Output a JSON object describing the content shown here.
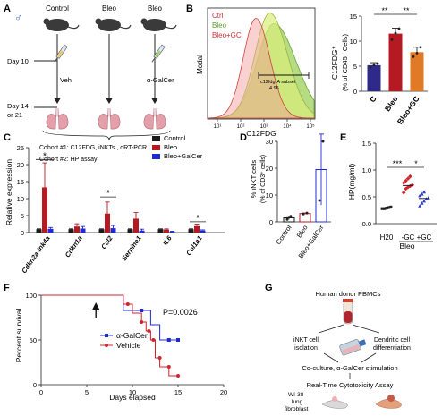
{
  "panel_labels": [
    "A",
    "B",
    "C",
    "D",
    "E",
    "F",
    "G"
  ],
  "panelA": {
    "groups": [
      "Control",
      "Bleo",
      "Bleo"
    ],
    "day10": "Day 10",
    "treatments": [
      "Veh",
      "α-GalCer"
    ],
    "day14": "Day 14",
    "or21": "or 21",
    "cohort1": "Cohort #1: C12FDG, iNKTs , qRT-PCR",
    "cohort2": "Cohort #2: HP assay"
  },
  "colors": {
    "black": "#1a1a1a",
    "red": "#b51a22",
    "blue": "#1f2bd0",
    "orange": "#e07a26",
    "green": "#7fc241",
    "purple": "#2f2a8a"
  },
  "chart_data": [
    {
      "id": "B-histogram",
      "type": "area",
      "legend": [
        "Ctrl",
        "Bleo",
        "Bleo+GC"
      ],
      "ylabel": "Modal",
      "xlabel": "C12FDG",
      "xticks": [
        "10¹",
        "10²",
        "10³",
        "10⁴",
        "10⁵"
      ],
      "gate_label": "c12fdg-A subset",
      "gate_value": "4.96"
    },
    {
      "id": "B-bar",
      "type": "bar",
      "categories": [
        "C",
        "Bleo",
        "Bleo+GC"
      ],
      "values": [
        5.2,
        11.5,
        7.8
      ],
      "errors": [
        0.5,
        1.1,
        1.0
      ],
      "points": [
        [
          4.8,
          5.2,
          5.5
        ],
        [
          10.3,
          11.6,
          12.5
        ],
        [
          6.9,
          7.6,
          8.8
        ]
      ],
      "ylabel": "C12FDG⁺",
      "ylabel2": "(% of CD45⁺ Cells)",
      "ylim": [
        0,
        15
      ],
      "yticks": [
        "0",
        "5",
        "10",
        "15"
      ],
      "sig": [
        "**",
        "**"
      ]
    },
    {
      "id": "C",
      "type": "bar",
      "ylabel": "Relative expression",
      "ylim": [
        0,
        25
      ],
      "yticks": [
        "0",
        "5",
        "10",
        "15",
        "20",
        "25"
      ],
      "categories": [
        "Cdkn2a-Ink4a",
        "Cdkn1a",
        "Ccl2",
        "Serpine1",
        "IL6",
        "Col1a1"
      ],
      "series": [
        {
          "name": "Control",
          "values": [
            1,
            1,
            1,
            1,
            1,
            1
          ],
          "errors": [
            0.1,
            0.1,
            0.1,
            0.1,
            0.1,
            0.1
          ]
        },
        {
          "name": "Bleo",
          "values": [
            13.3,
            1.8,
            5.6,
            4.1,
            0.9,
            1.9
          ],
          "errors": [
            7.2,
            0.8,
            3.4,
            1.8,
            0.2,
            0.6
          ]
        },
        {
          "name": "Bleo+GalCer",
          "values": [
            1.1,
            1.2,
            1.3,
            0.6,
            0.3,
            0.6
          ],
          "errors": [
            0.4,
            0.6,
            0.8,
            0.4,
            0.1,
            0.2
          ]
        }
      ],
      "sig_marks": [
        "*",
        "*",
        "*"
      ]
    },
    {
      "id": "D",
      "type": "bar",
      "ylabel": "% iNKT cells",
      "ylabel2": "(% of CD3⁺ cells)",
      "ylim": [
        0,
        30
      ],
      "yticks": [
        "0",
        "10",
        "20",
        "30"
      ],
      "categories": [
        "Control",
        "Bleo",
        "Bleo+GalCer"
      ],
      "values": [
        1.5,
        3.1,
        19.5
      ],
      "errors": [
        0.6,
        0.2,
        13.2
      ],
      "points": [
        [
          0.9,
          2.1
        ],
        [
          2.9,
          3.3
        ],
        [
          8,
          30
        ]
      ]
    },
    {
      "id": "E",
      "type": "scatter",
      "ylabel": "HP(mg/ml)",
      "ylim": [
        0,
        1.5
      ],
      "yticks": [
        "0.0",
        "0.5",
        "1.0",
        "1.5"
      ],
      "categories": [
        "H20",
        "-GC",
        "+GC"
      ],
      "group_label": "Bleo",
      "means": [
        0.29,
        0.71,
        0.47
      ],
      "errors": [
        0.01,
        0.05,
        0.04
      ],
      "points": [
        [
          0.28,
          0.28,
          0.29,
          0.3,
          0.31
        ],
        [
          0.58,
          0.65,
          0.68,
          0.7,
          0.72,
          0.76,
          0.8,
          0.84,
          0.88
        ],
        [
          0.33,
          0.38,
          0.42,
          0.46,
          0.48,
          0.52,
          0.55,
          0.59
        ]
      ],
      "sig": [
        "***",
        "*"
      ]
    },
    {
      "id": "F",
      "type": "line",
      "ylabel": "Percent survival",
      "xlabel": "Days elapsed",
      "xlim": [
        0,
        20
      ],
      "ylim": [
        0,
        100
      ],
      "xticks": [
        "0",
        "5",
        "10",
        "15",
        "20"
      ],
      "yticks": [
        "0",
        "50",
        "100"
      ],
      "arrow_x": 6,
      "p_value": "P=0.0026",
      "series": [
        {
          "name": "α-GalCer",
          "x": [
            0,
            9,
            9,
            12,
            12,
            13,
            13,
            15
          ],
          "y": [
            100,
            100,
            83,
            83,
            67,
            67,
            50,
            50
          ],
          "markers": [
            [
              11,
              83
            ],
            [
              14,
              50
            ],
            [
              15,
              50
            ]
          ]
        },
        {
          "name": "Vehicle",
          "x": [
            0,
            9,
            9,
            10,
            10,
            11,
            11,
            11.5,
            11.5,
            12,
            12,
            12.5,
            12.5,
            13,
            13,
            14,
            14,
            15
          ],
          "y": [
            100,
            100,
            90,
            90,
            80,
            80,
            70,
            70,
            60,
            60,
            50,
            50,
            30,
            30,
            20,
            20,
            10,
            10
          ],
          "markers": [
            [
              9.5,
              90
            ],
            [
              11,
              70
            ],
            [
              11.8,
              60
            ],
            [
              12.3,
              50
            ],
            [
              13,
              30
            ],
            [
              14,
              20
            ],
            [
              15,
              10
            ]
          ]
        }
      ]
    }
  ],
  "panelG": {
    "donor": "Human donor PBMCs",
    "inkt1": "iNKT cell",
    "inkt2": "isolation",
    "dc1": "Dendritic cell",
    "dc2": "differentiation",
    "coculture": "Co-culture, α-GalCer stimulation",
    "rtca": "Real-Time Cytotoxicity Assay",
    "wi1": "WI-38",
    "wi2": "lung",
    "wi3": "fibroblast"
  }
}
